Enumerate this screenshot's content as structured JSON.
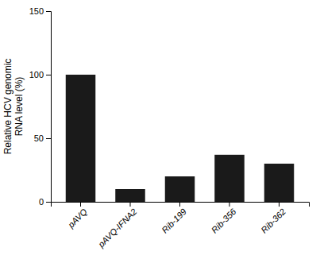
{
  "chart_data": {
    "type": "bar",
    "categories": [
      "pAVQ",
      "pAVQ-IFNA2",
      "Rib-199",
      "Rib-356",
      "Rib-362"
    ],
    "values": [
      100,
      10,
      20,
      37,
      30
    ],
    "color": "#1a1a1a",
    "ylabel": "Relative HCV genomic\nRNA level (%)",
    "ylim": [
      0,
      150
    ],
    "yticks": [
      0,
      50,
      100,
      150
    ],
    "grid": false
  }
}
